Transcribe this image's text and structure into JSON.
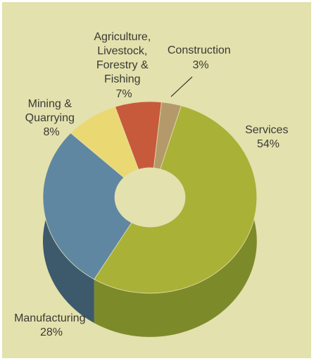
{
  "chart_data": {
    "type": "pie",
    "variant": "3d-donut",
    "title": "",
    "slices": [
      {
        "label": "Services",
        "lines": [
          "Services",
          "54%"
        ],
        "value": 54,
        "color": "#a9b137",
        "side_color": "#7d8a2a"
      },
      {
        "label": "Manufacturing",
        "lines": [
          "Manufacturing",
          "28%"
        ],
        "value": 28,
        "color": "#5f87a1",
        "side_color": "#3d5a6c"
      },
      {
        "label": "Mining & Quarrying",
        "lines": [
          "Mining &",
          "Quarrying",
          "8%"
        ],
        "value": 8,
        "color": "#ead873",
        "side_color": "#b9a94f"
      },
      {
        "label": "Agriculture, Livestock, Forestry & Fishing",
        "lines": [
          "Agriculture,",
          "Livestock,",
          "Forestry &",
          "Fishing",
          "7%"
        ],
        "value": 7,
        "color": "#c75a3b",
        "side_color": "#8f3e29"
      },
      {
        "label": "Construction",
        "lines": [
          "Construction",
          "3%"
        ],
        "value": 3,
        "color": "#b49a6b",
        "side_color": "#7e6b48"
      }
    ]
  }
}
